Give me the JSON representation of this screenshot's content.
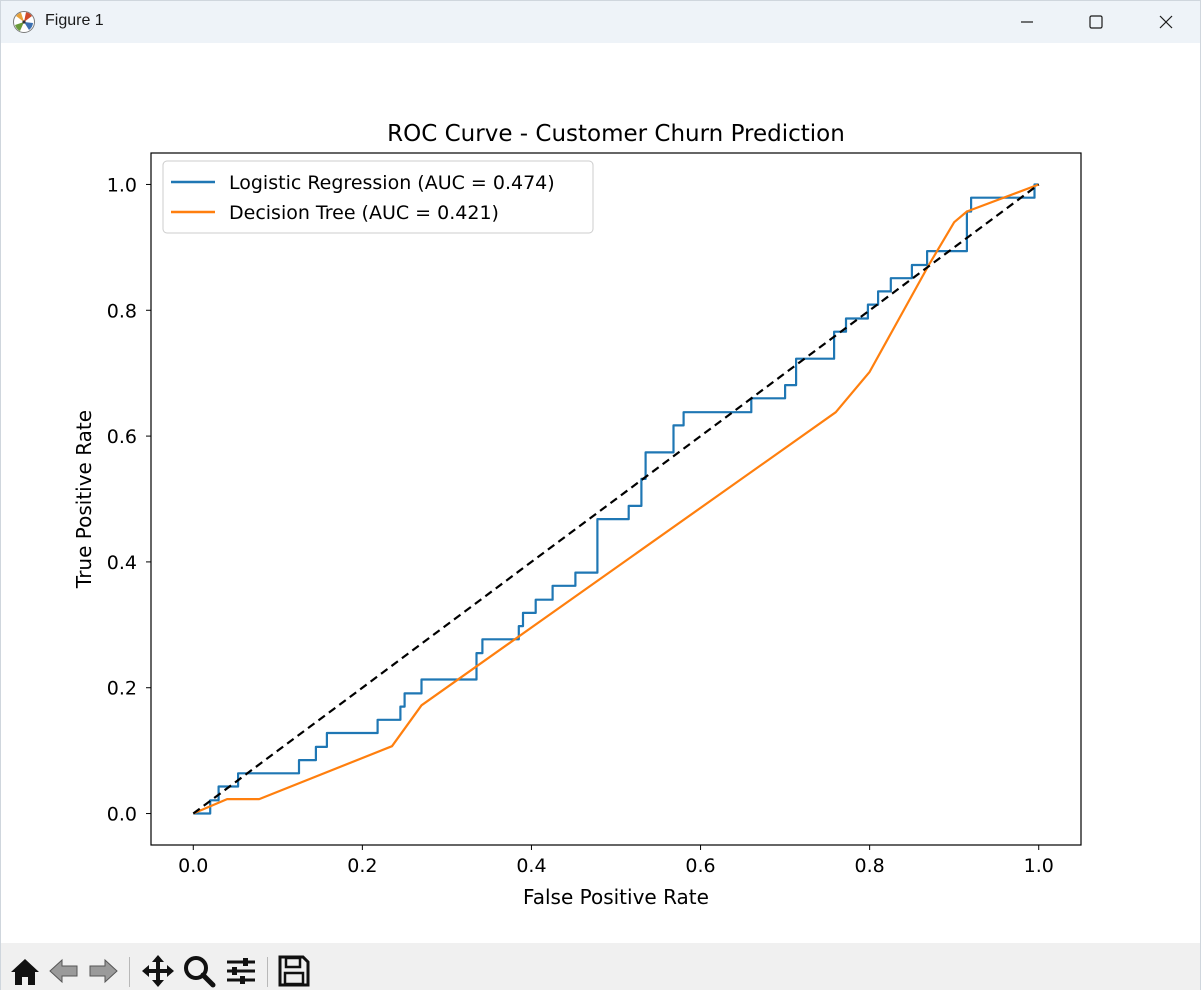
{
  "window": {
    "title": "Figure 1",
    "controls": [
      "minimize-icon",
      "maximize-icon",
      "close-icon"
    ]
  },
  "toolbar": {
    "tools": [
      "home-icon",
      "back-arrow-icon",
      "forward-arrow-icon",
      "pan-icon",
      "zoom-icon",
      "configure-subplots-icon",
      "save-icon"
    ]
  },
  "colors": {
    "logistic": "#1f77b4",
    "tree": "#ff7f0e",
    "diagonal": "#000000"
  },
  "chart_data": {
    "type": "line",
    "title": "ROC Curve - Customer Churn Prediction",
    "xlabel": "False Positive Rate",
    "ylabel": "True Positive Rate",
    "xlim": [
      -0.05,
      1.05
    ],
    "ylim": [
      -0.05,
      1.05
    ],
    "xticks": [
      "0.0",
      "0.2",
      "0.4",
      "0.6",
      "0.8",
      "1.0"
    ],
    "yticks": [
      "0.0",
      "0.2",
      "0.4",
      "0.6",
      "0.8",
      "1.0"
    ],
    "legend_position": "top-left",
    "grid": false,
    "series": [
      {
        "name": "Logistic Regression (AUC = 0.474)",
        "color": "#1f77b4",
        "x": [
          0.0,
          0.02,
          0.02,
          0.03,
          0.03,
          0.053,
          0.053,
          0.125,
          0.125,
          0.145,
          0.145,
          0.158,
          0.158,
          0.218,
          0.218,
          0.245,
          0.245,
          0.25,
          0.25,
          0.27,
          0.27,
          0.335,
          0.335,
          0.342,
          0.342,
          0.385,
          0.385,
          0.39,
          0.39,
          0.405,
          0.405,
          0.425,
          0.425,
          0.452,
          0.452,
          0.478,
          0.478,
          0.515,
          0.515,
          0.53,
          0.53,
          0.535,
          0.535,
          0.568,
          0.568,
          0.58,
          0.58,
          0.66,
          0.66,
          0.7,
          0.7,
          0.713,
          0.713,
          0.758,
          0.758,
          0.772,
          0.772,
          0.798,
          0.798,
          0.81,
          0.81,
          0.825,
          0.825,
          0.85,
          0.85,
          0.868,
          0.868,
          0.915,
          0.915,
          0.92,
          0.92,
          0.995,
          0.995,
          1.0
        ],
        "y": [
          0.0,
          0.0,
          0.021,
          0.021,
          0.043,
          0.043,
          0.064,
          0.064,
          0.085,
          0.085,
          0.106,
          0.106,
          0.128,
          0.128,
          0.149,
          0.149,
          0.17,
          0.17,
          0.191,
          0.191,
          0.213,
          0.213,
          0.255,
          0.255,
          0.277,
          0.277,
          0.298,
          0.298,
          0.319,
          0.319,
          0.34,
          0.34,
          0.362,
          0.362,
          0.383,
          0.383,
          0.468,
          0.468,
          0.489,
          0.489,
          0.532,
          0.532,
          0.574,
          0.574,
          0.617,
          0.617,
          0.638,
          0.638,
          0.66,
          0.66,
          0.681,
          0.681,
          0.723,
          0.723,
          0.766,
          0.766,
          0.787,
          0.787,
          0.809,
          0.809,
          0.83,
          0.83,
          0.851,
          0.851,
          0.872,
          0.872,
          0.894,
          0.894,
          0.957,
          0.957,
          0.979,
          0.979,
          1.0,
          1.0
        ]
      },
      {
        "name": "Decision Tree (AUC = 0.421)",
        "color": "#ff7f0e",
        "x": [
          0.0,
          0.04,
          0.078,
          0.235,
          0.27,
          0.76,
          0.8,
          0.87,
          0.9,
          0.915,
          1.0
        ],
        "y": [
          0.0,
          0.023,
          0.023,
          0.107,
          0.172,
          0.638,
          0.702,
          0.872,
          0.94,
          0.957,
          1.0
        ]
      },
      {
        "name": "",
        "color": "#000000",
        "dashed": true,
        "x": [
          0.0,
          1.0
        ],
        "y": [
          0.0,
          1.0
        ]
      }
    ]
  }
}
